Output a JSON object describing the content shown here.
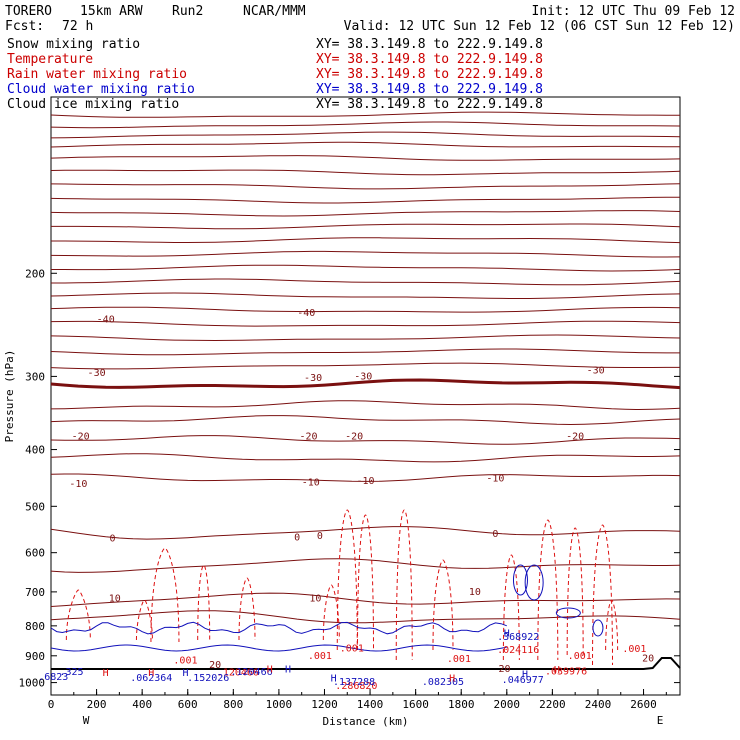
{
  "header": {
    "model": "TORERO",
    "resolution": "15km ARW",
    "run": "Run2",
    "center": "NCAR/MMM",
    "init": "Init: 12 UTC Thu 09 Feb 12",
    "fcst_label": "Fcst:",
    "fcst_value": "72 h",
    "valid": "Valid: 12 UTC Sun 12 Feb 12 (06 CST Sun 12 Feb 12)"
  },
  "legend": [
    {
      "name": "Snow mixing ratio",
      "color": "#000000",
      "xy": "XY=  38.3.149.8 to 222.9.149.8"
    },
    {
      "name": "Temperature",
      "color": "#cc0000",
      "xy": "XY=  38.3.149.8 to 222.9.149.8"
    },
    {
      "name": "Rain water mixing ratio",
      "color": "#cc0000",
      "xy": "XY=  38.3.149.8 to 222.9.149.8"
    },
    {
      "name": "Cloud water mixing ratio",
      "color": "#0000cc",
      "xy": "XY=  38.3.149.8 to 222.9.149.8"
    },
    {
      "name": "Cloud ice mixing ratio",
      "color": "#000000",
      "xy": "XY=  38.3.149.8 to 222.9.149.8"
    }
  ],
  "colors": {
    "temperature": "#7a1010",
    "rain": "#dd1111",
    "cloud": "#1111bb",
    "terrain": "#000000"
  },
  "chart_data": {
    "type": "cross-section",
    "xlabel": "Distance (km)",
    "ylabel": "Pressure (hPa)",
    "xlim": [
      0,
      2760
    ],
    "ylim": [
      1050,
      100
    ],
    "y_scale": "log-pressure",
    "x_ticks": [
      0,
      200,
      400,
      600,
      800,
      1000,
      1200,
      1400,
      1600,
      1800,
      2000,
      2200,
      2400,
      2600
    ],
    "y_ticks": [
      200,
      300,
      400,
      500,
      600,
      700,
      800,
      900,
      1000
    ],
    "x_end_labels": {
      "left": "W",
      "right": "E"
    },
    "temperature_isotherm_labels": [
      {
        "x": 240,
        "p": 240,
        "text": "-40"
      },
      {
        "x": 1120,
        "p": 234,
        "text": "-40"
      },
      {
        "x": 200,
        "p": 296,
        "text": "-30"
      },
      {
        "x": 1150,
        "p": 302,
        "text": "-30"
      },
      {
        "x": 1370,
        "p": 300,
        "text": "-30"
      },
      {
        "x": 2390,
        "p": 293,
        "text": "-30"
      },
      {
        "x": 130,
        "p": 380,
        "text": "-20"
      },
      {
        "x": 1130,
        "p": 380,
        "text": "-20"
      },
      {
        "x": 1330,
        "p": 380,
        "text": "-20"
      },
      {
        "x": 2300,
        "p": 380,
        "text": "-20"
      },
      {
        "x": 120,
        "p": 458,
        "text": "-10"
      },
      {
        "x": 1140,
        "p": 455,
        "text": "-10"
      },
      {
        "x": 1380,
        "p": 453,
        "text": "-10"
      },
      {
        "x": 1950,
        "p": 448,
        "text": "-10"
      },
      {
        "x": 270,
        "p": 568,
        "text": "0"
      },
      {
        "x": 1080,
        "p": 565,
        "text": "0"
      },
      {
        "x": 1180,
        "p": 562,
        "text": "0"
      },
      {
        "x": 1950,
        "p": 557,
        "text": "0"
      },
      {
        "x": 280,
        "p": 718,
        "text": "10"
      },
      {
        "x": 1160,
        "p": 718,
        "text": "10"
      },
      {
        "x": 1860,
        "p": 700,
        "text": "10"
      },
      {
        "x": 720,
        "p": 934,
        "text": "20"
      },
      {
        "x": 1990,
        "p": 948,
        "text": "20"
      },
      {
        "x": 2620,
        "p": 910,
        "text": "20"
      }
    ],
    "rain_labels": [
      {
        "x": 590,
        "p": 916,
        "text": ".001"
      },
      {
        "x": 1180,
        "p": 900,
        "text": ".001"
      },
      {
        "x": 1320,
        "p": 875,
        "text": ".001"
      },
      {
        "x": 1790,
        "p": 912,
        "text": ".001"
      },
      {
        "x": 2320,
        "p": 900,
        "text": ".001"
      },
      {
        "x": 2560,
        "p": 877,
        "text": ".001"
      },
      {
        "x": 2050,
        "p": 880,
        "text": ".024116"
      },
      {
        "x": 2260,
        "p": 958,
        "text": ".039976"
      },
      {
        "x": 820,
        "p": 962,
        "text": ".120466"
      },
      {
        "x": 1340,
        "p": 1013,
        "text": ".286820"
      }
    ],
    "cloud_labels": [
      {
        "x": 10,
        "p": 978,
        "text": ".6823"
      },
      {
        "x": 90,
        "p": 960,
        "text": ".325"
      },
      {
        "x": 440,
        "p": 982,
        "text": ".062364"
      },
      {
        "x": 690,
        "p": 982,
        "text": ".152026"
      },
      {
        "x": 880,
        "p": 960,
        "text": ".120466"
      },
      {
        "x": 1330,
        "p": 998,
        "text": ".137288"
      },
      {
        "x": 1720,
        "p": 998,
        "text": ".082305"
      },
      {
        "x": 2050,
        "p": 836,
        "text": ".368922"
      },
      {
        "x": 2070,
        "p": 990,
        "text": ".046977"
      }
    ],
    "high_markers": [
      {
        "x": 440,
        "p": 963,
        "series": "rain"
      },
      {
        "x": 590,
        "p": 963,
        "series": "cloud"
      },
      {
        "x": 240,
        "p": 963,
        "series": "rain"
      },
      {
        "x": 960,
        "p": 950,
        "series": "rain"
      },
      {
        "x": 1040,
        "p": 950,
        "series": "cloud"
      },
      {
        "x": 1240,
        "p": 985,
        "series": "cloud"
      },
      {
        "x": 1760,
        "p": 985,
        "series": "rain"
      },
      {
        "x": 2000,
        "p": 825,
        "series": "cloud"
      },
      {
        "x": 2220,
        "p": 952,
        "series": "rain"
      },
      {
        "x": 2080,
        "p": 968,
        "series": "cloud"
      }
    ]
  }
}
